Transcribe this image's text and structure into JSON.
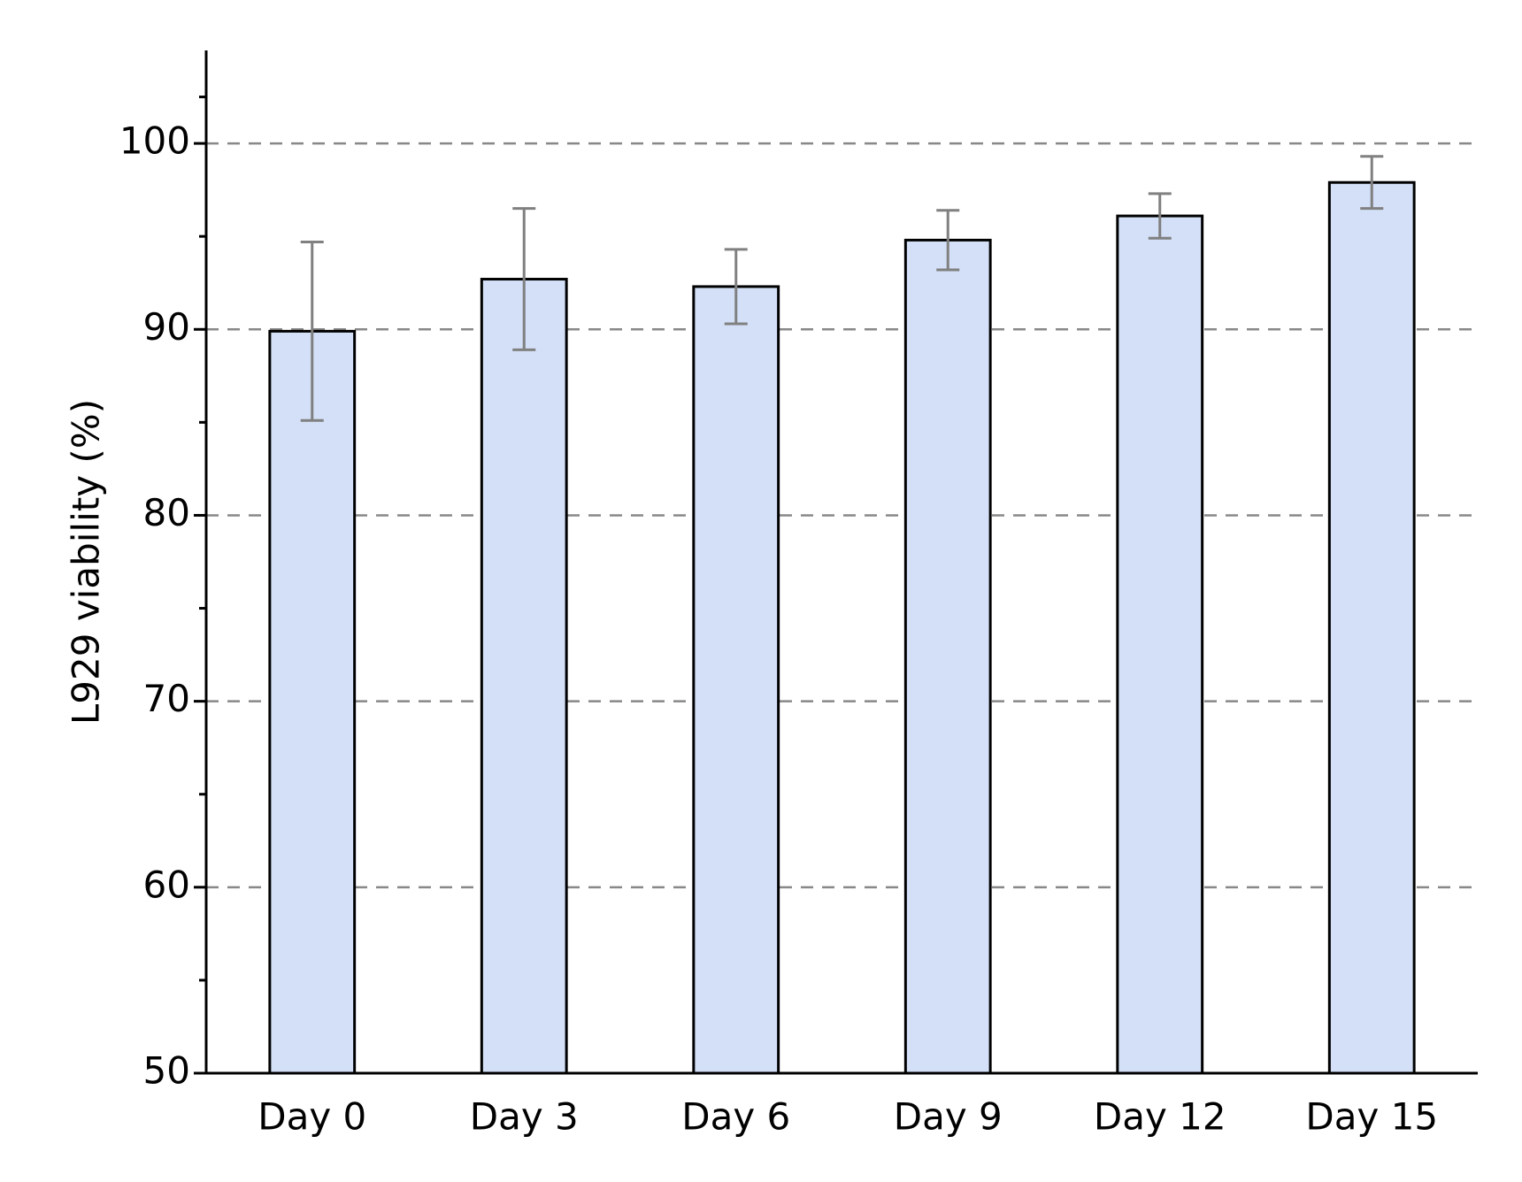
{
  "chart_data": {
    "type": "bar",
    "y_label": "L929 viability (%)",
    "categories": [
      "Day 0",
      "Day 3",
      "Day 6",
      "Day 9",
      "Day 12",
      "Day 15"
    ],
    "values": [
      89.9,
      92.7,
      92.3,
      94.8,
      96.1,
      97.9
    ],
    "errors": [
      4.8,
      3.8,
      2.0,
      1.6,
      1.2,
      1.4
    ],
    "color": "#d3e0f7",
    "error_color": "#808080",
    "ylim": [
      50,
      105
    ],
    "yticks": [
      50,
      60,
      70,
      80,
      90,
      100
    ],
    "grid": true
  }
}
